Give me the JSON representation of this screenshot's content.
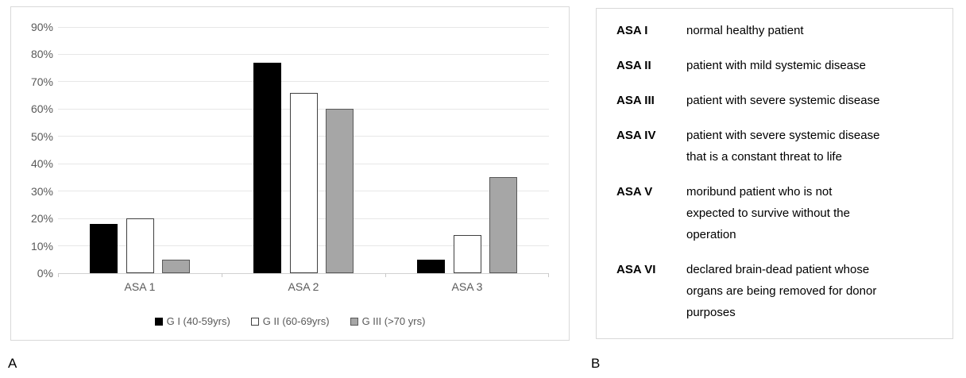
{
  "figure": {
    "label_a": "A",
    "label_b": "B"
  },
  "chart_data": {
    "type": "bar",
    "title": "",
    "xlabel": "",
    "ylabel": "",
    "categories": [
      "ASA 1",
      "ASA 2",
      "ASA 3"
    ],
    "series": [
      {
        "name": "G I (40-59yrs)",
        "fill": "#000000",
        "border": "#000000",
        "values": [
          18,
          77,
          5
        ]
      },
      {
        "name": "G II (60-69yrs)",
        "fill": "#ffffff",
        "border": "#404040",
        "values": [
          20,
          66,
          14
        ]
      },
      {
        "name": "G III (>70 yrs)",
        "fill": "#a6a6a6",
        "border": "#595959",
        "values": [
          5,
          60,
          35
        ]
      }
    ],
    "ylim": [
      0,
      90
    ],
    "ytick_step": 10,
    "ytick_labels": [
      "0%",
      "10%",
      "20%",
      "30%",
      "40%",
      "50%",
      "60%",
      "70%",
      "80%",
      "90%"
    ],
    "grid": true,
    "legend_position": "bottom"
  },
  "asa_table": {
    "rows": [
      {
        "term": "ASA I",
        "definition": "normal healthy patient"
      },
      {
        "term": "ASA II",
        "definition": "patient with mild systemic disease"
      },
      {
        "term": "ASA III",
        "definition": "patient with severe systemic disease"
      },
      {
        "term": "ASA IV",
        "definition": "patient with severe systemic disease\nthat is a constant threat to life"
      },
      {
        "term": "ASA V",
        "definition": "moribund patient who is not\nexpected to survive without the\noperation"
      },
      {
        "term": "ASA VI",
        "definition": "declared brain-dead patient whose\norgans are being removed for donor\npurposes"
      }
    ]
  }
}
